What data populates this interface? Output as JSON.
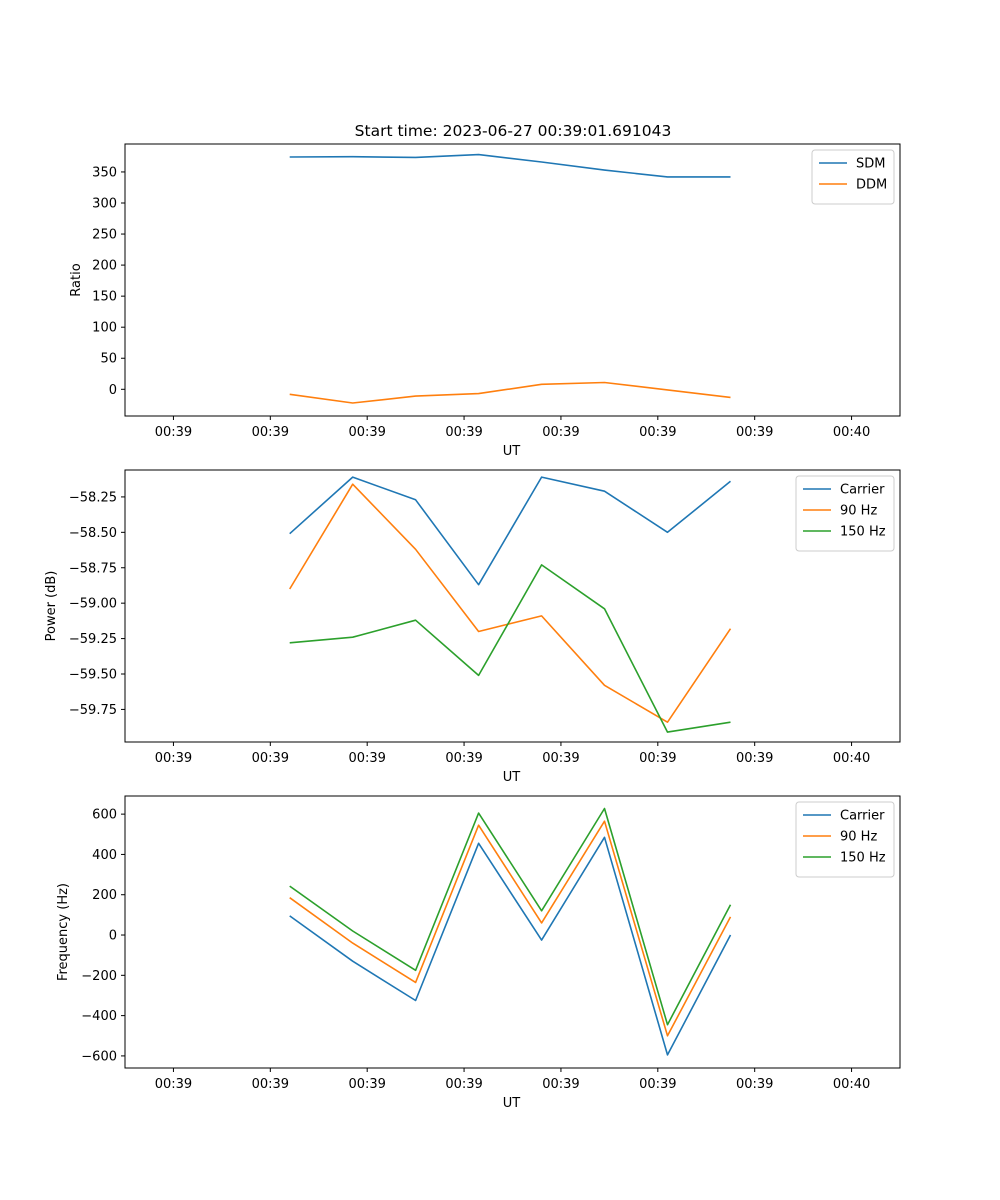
{
  "figure": {
    "title": "Start time: 2023-06-27 00:39:01.691043"
  },
  "chart_data": [
    {
      "type": "line",
      "title": "Start time: 2023-06-27 00:39:01.691043",
      "xlabel": "UT",
      "ylabel": "Ratio",
      "x": [
        1.7,
        2.35,
        3.0,
        3.65,
        4.3,
        4.95,
        5.6,
        6.25
      ],
      "xlim": [
        0,
        8
      ],
      "x_ticks": [
        0.5,
        1.5,
        2.5,
        3.5,
        4.5,
        5.5,
        6.5,
        7.5
      ],
      "x_tick_labels": [
        "00:39",
        "00:39",
        "00:39",
        "00:39",
        "00:39",
        "00:39",
        "00:39",
        "00:40"
      ],
      "ylim": [
        -43,
        395
      ],
      "y_ticks": [
        0,
        50,
        100,
        150,
        200,
        250,
        300,
        350
      ],
      "y_tick_labels": [
        "0",
        "50",
        "100",
        "150",
        "200",
        "250",
        "300",
        "350"
      ],
      "grid": false,
      "legend": "top-right",
      "series": [
        {
          "name": "SDM",
          "color": "#1f77b4",
          "values": [
            374,
            374.5,
            373.5,
            378,
            366,
            353,
            342,
            342
          ]
        },
        {
          "name": "DDM",
          "color": "#ff7f0e",
          "values": [
            -8,
            -22,
            -11,
            -7,
            8,
            11,
            -1,
            -13
          ]
        }
      ]
    },
    {
      "type": "line",
      "xlabel": "UT",
      "ylabel": "Power (dB)",
      "x": [
        1.7,
        2.35,
        3.0,
        3.65,
        4.3,
        4.95,
        5.6,
        6.25
      ],
      "xlim": [
        0,
        8
      ],
      "x_ticks": [
        0.5,
        1.5,
        2.5,
        3.5,
        4.5,
        5.5,
        6.5,
        7.5
      ],
      "x_tick_labels": [
        "00:39",
        "00:39",
        "00:39",
        "00:39",
        "00:39",
        "00:39",
        "00:39",
        "00:40"
      ],
      "ylim": [
        -59.98,
        -58.06
      ],
      "y_ticks": [
        -58.25,
        -58.5,
        -58.75,
        -59.0,
        -59.25,
        -59.5,
        -59.75
      ],
      "y_tick_labels": [
        "−58.25",
        "−58.50",
        "−58.75",
        "−59.00",
        "−59.25",
        "−59.50",
        "−59.75"
      ],
      "grid": false,
      "legend": "top-right",
      "series": [
        {
          "name": "Carrier",
          "color": "#1f77b4",
          "values": [
            -58.51,
            -58.11,
            -58.27,
            -58.87,
            -58.11,
            -58.21,
            -58.5,
            -58.14
          ]
        },
        {
          "name": "90 Hz",
          "color": "#ff7f0e",
          "values": [
            -58.9,
            -58.16,
            -58.62,
            -59.2,
            -59.09,
            -59.58,
            -59.84,
            -59.18
          ]
        },
        {
          "name": "150 Hz",
          "color": "#2ca02c",
          "values": [
            -59.28,
            -59.24,
            -59.12,
            -59.51,
            -58.73,
            -59.04,
            -59.91,
            -59.84
          ]
        }
      ]
    },
    {
      "type": "line",
      "xlabel": "UT",
      "ylabel": "Frequency (Hz)",
      "x": [
        1.7,
        2.35,
        3.0,
        3.65,
        4.3,
        4.95,
        5.6,
        6.25
      ],
      "xlim": [
        0,
        8
      ],
      "x_ticks": [
        0.5,
        1.5,
        2.5,
        3.5,
        4.5,
        5.5,
        6.5,
        7.5
      ],
      "x_tick_labels": [
        "00:39",
        "00:39",
        "00:39",
        "00:39",
        "00:39",
        "00:39",
        "00:39",
        "00:40"
      ],
      "ylim": [
        -660,
        690
      ],
      "y_ticks": [
        600,
        400,
        200,
        0,
        -200,
        -400,
        -600
      ],
      "y_tick_labels": [
        "600",
        "400",
        "200",
        "0",
        "−200",
        "−400",
        "−600"
      ],
      "grid": false,
      "legend": "top-right",
      "series": [
        {
          "name": "Carrier",
          "color": "#1f77b4",
          "values": [
            95,
            -130,
            -325,
            455,
            -25,
            485,
            -595,
            0
          ]
        },
        {
          "name": "90 Hz",
          "color": "#ff7f0e",
          "values": [
            185,
            -40,
            -235,
            545,
            60,
            565,
            -500,
            90
          ]
        },
        {
          "name": "150 Hz",
          "color": "#2ca02c",
          "values": [
            243,
            20,
            -175,
            605,
            120,
            628,
            -445,
            150
          ]
        }
      ]
    }
  ]
}
